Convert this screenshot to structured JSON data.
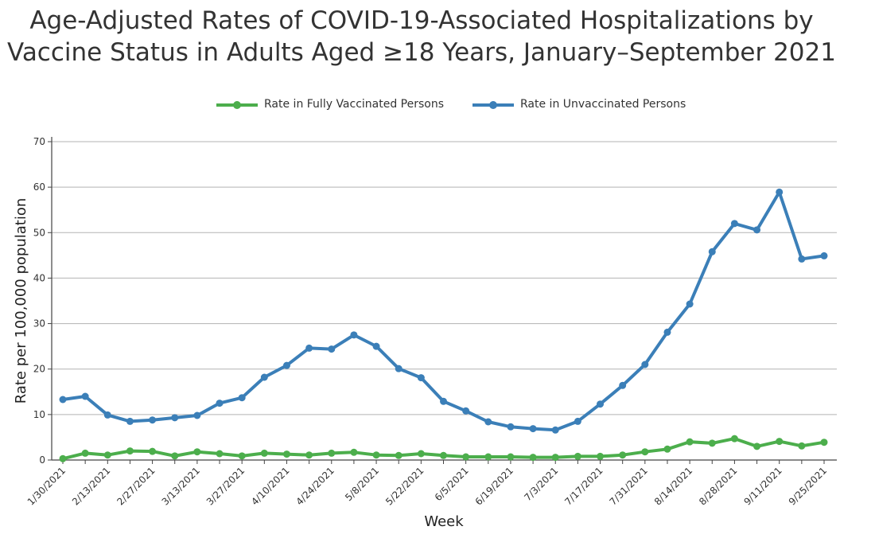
{
  "chart_data": {
    "type": "line",
    "title": "Age-Adjusted Rates of COVID-19-Associated Hospitalizations by Vaccine Status in Adults Aged ≥18 Years, January–September 2021",
    "title_line1": "Age-Adjusted Rates of COVID-19-Associated Hospitalizations by",
    "title_line2": "Vaccine Status in Adults Aged ≥18 Years, January–September 2021",
    "xlabel": "Week",
    "ylabel": "Rate per 100,000 population",
    "ylim": [
      0,
      70
    ],
    "yticks": [
      0,
      10,
      20,
      30,
      40,
      50,
      60,
      70
    ],
    "grid": true,
    "legend_position": "top-center",
    "x": [
      "1/30/2021",
      "2/6/2021",
      "2/13/2021",
      "2/20/2021",
      "2/27/2021",
      "3/6/2021",
      "3/13/2021",
      "3/20/2021",
      "3/27/2021",
      "4/3/2021",
      "4/10/2021",
      "4/17/2021",
      "4/24/2021",
      "5/1/2021",
      "5/8/2021",
      "5/15/2021",
      "5/22/2021",
      "5/29/2021",
      "6/5/2021",
      "6/12/2021",
      "6/19/2021",
      "6/26/2021",
      "7/3/2021",
      "7/10/2021",
      "7/17/2021",
      "7/24/2021",
      "7/31/2021",
      "8/7/2021",
      "8/14/2021",
      "8/21/2021",
      "8/28/2021",
      "9/4/2021",
      "9/11/2021",
      "9/18/2021",
      "9/25/2021"
    ],
    "tick_labels": [
      "1/30/2021",
      "2/13/2021",
      "2/27/2021",
      "3/13/2021",
      "3/27/2021",
      "4/10/2021",
      "4/24/2021",
      "5/8/2021",
      "5/22/2021",
      "6/5/2021",
      "6/19/2021",
      "7/3/2021",
      "7/17/2021",
      "7/31/2021",
      "8/14/2021",
      "8/28/2021",
      "9/11/2021",
      "9/25/2021"
    ],
    "series": [
      {
        "name": "Rate in Fully Vaccinated Persons",
        "color": "#4cae4c",
        "values": [
          0.3,
          1.5,
          1.1,
          2.0,
          1.9,
          0.9,
          1.8,
          1.4,
          0.9,
          1.5,
          1.3,
          1.1,
          1.5,
          1.7,
          1.1,
          1.0,
          1.4,
          1.0,
          0.7,
          0.7,
          0.7,
          0.6,
          0.6,
          0.8,
          0.8,
          1.1,
          1.8,
          2.4,
          4.0,
          3.7,
          4.7,
          3.0,
          4.1,
          3.1,
          3.9
        ]
      },
      {
        "name": "Rate in Unvaccinated Persons",
        "color": "#3b7fb8",
        "values": [
          13.3,
          14.0,
          9.9,
          8.5,
          8.8,
          9.3,
          9.8,
          12.5,
          13.7,
          18.2,
          20.8,
          24.6,
          24.4,
          27.5,
          25.0,
          20.1,
          18.1,
          12.9,
          10.8,
          8.4,
          7.3,
          6.9,
          6.6,
          8.5,
          12.3,
          16.4,
          21.0,
          28.1,
          34.3,
          45.8,
          52.0,
          50.6,
          58.9,
          44.2,
          44.9
        ]
      }
    ]
  }
}
